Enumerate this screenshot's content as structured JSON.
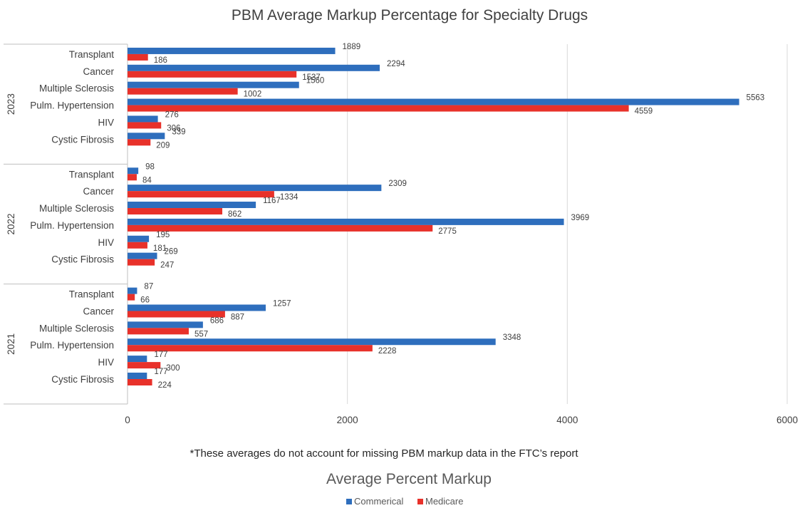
{
  "chart_data": {
    "type": "bar",
    "orientation": "horizontal",
    "title": "PBM Average Markup Percentage for Specialty Drugs",
    "xlabel": "Average Percent Markup",
    "footnote": "*These averages do not account for missing PBM markup data in the FTC’s report",
    "xlim": [
      0,
      6000
    ],
    "x_ticks": [
      0,
      2000,
      4000,
      6000
    ],
    "grid": "vertical",
    "legend_position": "bottom",
    "categories": [
      "Transplant",
      "Cancer",
      "Multiple Sclerosis",
      "Pulm. Hypertension",
      "HIV",
      "Cystic Fibrosis"
    ],
    "groups": [
      {
        "year": "2023",
        "commercial": [
          1889,
          2294,
          1560,
          5563,
          276,
          339
        ],
        "medicare": [
          186,
          1537,
          1002,
          4559,
          306,
          209
        ]
      },
      {
        "year": "2022",
        "commercial": [
          98,
          2309,
          1167,
          3969,
          195,
          269
        ],
        "medicare": [
          84,
          1334,
          862,
          2775,
          181,
          247
        ]
      },
      {
        "year": "2021",
        "commercial": [
          87,
          1257,
          686,
          3348,
          177,
          177
        ],
        "medicare": [
          66,
          887,
          557,
          2228,
          300,
          224
        ]
      }
    ],
    "series": [
      {
        "name": "Commerical",
        "key": "commercial",
        "color": "#2e6ebd"
      },
      {
        "name": "Medicare",
        "key": "medicare",
        "color": "#e8312a"
      }
    ]
  }
}
